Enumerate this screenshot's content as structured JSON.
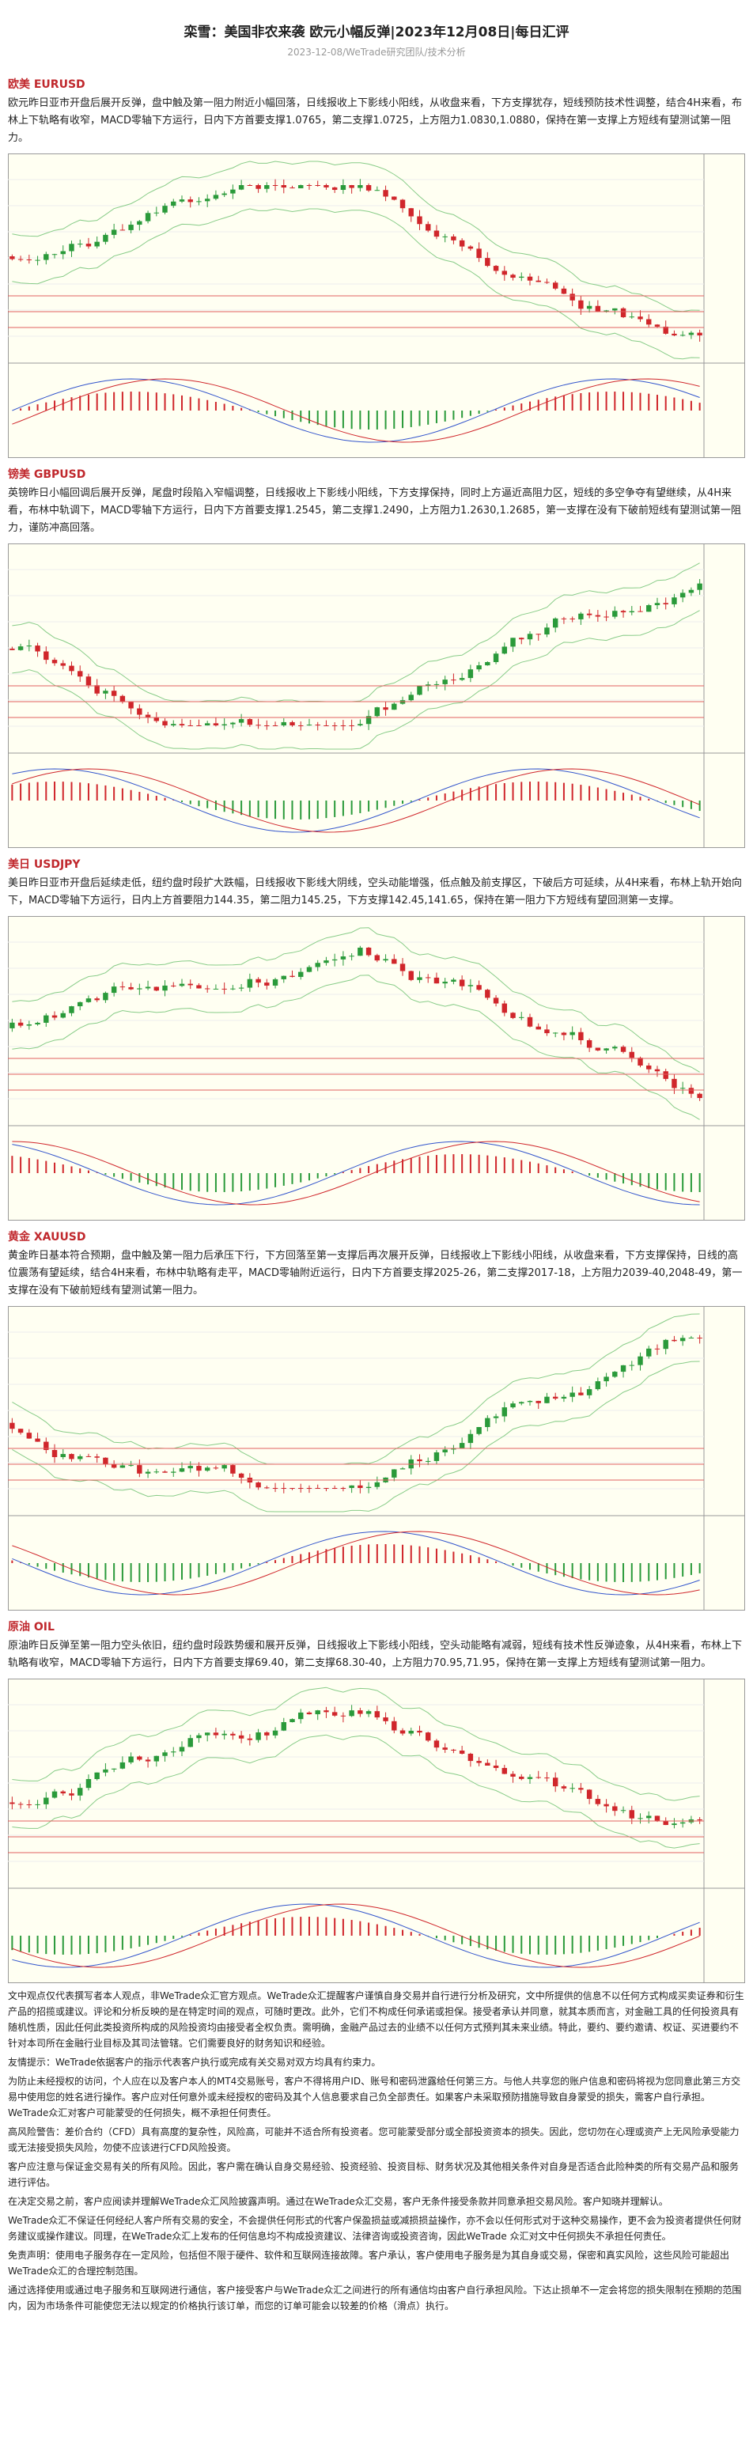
{
  "header": {
    "title": "栾雪：美国非农来袭 欧元小幅反弹|2023年12月08日|每日汇评",
    "subtitle": "2023-12-08/WeTrade研究团队/技术分析"
  },
  "sections": [
    {
      "heading": "欧美 EURUSD",
      "text": "欧元昨日亚市开盘后展开反弹，盘中触及第一阻力附近小幅回落，日线报收上下影线小阳线，从收盘来看，下方支撑犹存，短线预防技术性调整，结合4H来看，布林上下轨略有收窄，MACD零轴下方运行，日内下方首要支撑1.0765，第二支撑1.0725，上方阻力1.0830,1.0880，保持在第一支撑上方短线有望测试第一阻力。"
    },
    {
      "heading": "镑美 GBPUSD",
      "text": "英镑昨日小幅回调后展开反弹，尾盘时段陷入窄幅调整，日线报收上下影线小阳线，下方支撑保持，同时上方逼近高阻力区，短线的多空争夺有望继续，从4H来看，布林中轨调下，MACD零轴下方运行，日内下方首要支撑1.2545，第二支撑1.2490，上方阻力1.2630,1.2685，第一支撑在没有下破前短线有望测试第一阻力，谨防冲高回落。"
    },
    {
      "heading": "美日 USDJPY",
      "text": "美日昨日亚市开盘后延续走低，纽约盘时段扩大跌幅，日线报收下影线大阴线，空头动能增强，低点触及前支撑区，下破后方可延续，从4H来看，布林上轨开始向下，MACD零轴下方运行，日内上方首要阻力144.35，第二阻力145.25，下方支撑142.45,141.65，保持在第一阻力下方短线有望回测第一支撑。"
    },
    {
      "heading": "黄金 XAUUSD",
      "text": "黄金昨日基本符合预期，盘中触及第一阻力后承压下行，下方回落至第一支撑后再次展开反弹，日线报收上下影线小阳线，从收盘来看，下方支撑保持，日线的高位震荡有望延续，结合4H来看，布林中轨略有走平，MACD零轴附近运行，日内下方首要支撑2025-26，第二支撑2017-18，上方阻力2039-40,2048-49，第一支撑在没有下破前短线有望测试第一阻力。"
    },
    {
      "heading": "原油 OIL",
      "text": "原油昨日反弹至第一阻力空头依旧，纽约盘时段跌势缓和展开反弹，日线报收上下影线小阳线，空头动能略有减弱，短线有技术性反弹迹象，从4H来看，布林上下轨略有收窄，MACD零轴下方运行，日内下方首要支撑69.40，第二支撑68.30-40，上方阻力70.95,71.95，保持在第一支撑上方短线有望测试第一阻力。"
    }
  ],
  "disclaimer": [
    "文中观点仅代表撰写者本人观点，非WeTrade众汇官方观点。WeTrade众汇提醒客户谨慎自身交易并自行进行分析及研究，文中所提供的信息不以任何方式构成买卖证券和衍生产品的招揽或建议。评论和分析反映的是在特定时间的观点，可随时更改。此外，它们不构成任何承诺或担保。接受者承认并同意，就其本质而言，对金融工具的任何投资具有随机性质，因此任何此类投资所构成的风险投资均由接受者全权负责。需明确，金融产品过去的业绩不以任何方式预判其未来业绩。特此，要约、要约邀请、权证、买进要约不针对本司所在金融行业目标及其司法管辖。它们需要良好的财务知识和经验。",
    "友情提示：WeTrade依据客户的指示代表客户执行或完成有关交易对双方均具有约束力。",
    "为防止未经授权的访问，个人应在以及客户本人的MT4交易账号，客户不得将用户ID、账号和密码泄露给任何第三方。与他人共享您的账户信息和密码将视为您同意此第三方交易中使用您的姓名进行操作。客户应对任何意外或未经授权的密码及其个人信息要求自己负全部责任。如果客户未采取预防措施导致自身蒙受的损失，需客户自行承担。WeTrade众汇对客户可能蒙受的任何损失，概不承担任何责任。",
    "高风险警告：差价合约（CFD）具有高度的复杂性，风险高，可能并不适合所有投资者。您可能蒙受部分或全部投资资本的损失。因此，您切勿在心理或资产上无风险承受能力或无法接受损失风险，勿使不应该进行CFD风险投资。",
    "客户应注意与保证金交易有关的所有风险。因此，客户需在确认自身交易经验、投资经验、投资目标、财务状况及其他相关条件对自身是否适合此险种类的所有交易产品和服务进行评估。",
    "在决定交易之前，客户应阅读并理解WeTrade众汇风险披露声明。通过在WeTrade众汇交易，客户无条件接受条款并同意承担交易风险。客户知晓并理解认。",
    "WeTrade众汇不保证任何经纪人客户所有交易的安全，不会提供任何形式的代客户保盈损益或减损损益操作，亦不会以任何形式对于这种交易操作，更不会为投资者提供任何财务建议或操作建议。同理，在WeTrade众汇上发布的任何信息均不构成投资建议、法律咨询或投资咨询，因此WeTrade 众汇对文中任何损失不承担任何责任。",
    "免责声明：使用电子服务存在一定风险，包括但不限于硬件、软件和互联网连接故障。客户承认，客户使用电子服务是为其自身或交易，保密和真实风险，这些风险可能超出WeTrade众汇的合理控制范围。",
    "通过选择使用或通过电子服务和互联网进行通信，客户接受客户与WeTrade众汇之间进行的所有通信均由客户自行承担风险。下达止损单不一定会将您的损失限制在预期的范围内，因为市场条件可能使您无法以规定的价格执行该订单，而您的订单可能会以较差的价格（滑点）执行。"
  ]
}
